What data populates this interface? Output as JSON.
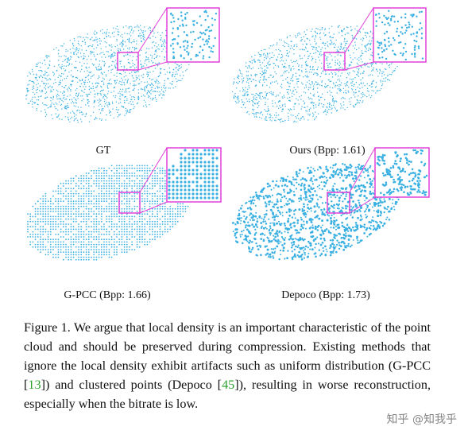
{
  "panels": [
    {
      "id": "gt",
      "label": "GT",
      "style": "dense"
    },
    {
      "id": "ours",
      "label": "Ours (Bpp: 1.61)",
      "style": "dense"
    },
    {
      "id": "gpcc",
      "label": "G-PCC (Bpp: 1.66)",
      "style": "grid"
    },
    {
      "id": "depoco",
      "label": "Depoco (Bpp: 1.73)",
      "style": "clustered"
    }
  ],
  "caption": {
    "prefix": "Figure 1.",
    "part1": " We argue that local density is an important characteristic of the point cloud and should be preserved during compression. Existing methods that ignore the local density exhibit artifacts such as uniform distribution (G-PCC [",
    "ref1": "13",
    "part2": "]) and clustered points (Depoco [",
    "ref2": "45",
    "part3": "]), resulting in worse reconstruction, especially when the bitrate is low."
  },
  "watermark": "知乎 @知我乎",
  "colors": {
    "points": "#3ab0e2",
    "zoom_box": "#e040d8",
    "ref": "#2ca02c"
  }
}
